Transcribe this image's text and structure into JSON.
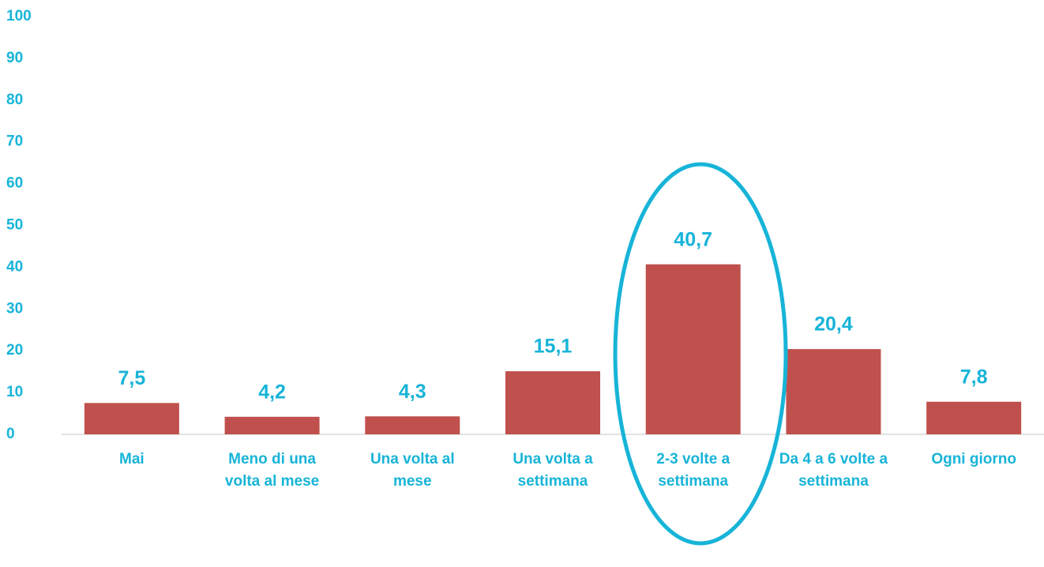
{
  "chart_data": {
    "type": "bar",
    "categories": [
      "Mai",
      "Meno di una volta al mese",
      "Una volta al mese",
      "Una volta a settimana",
      "2-3 volte a settimana",
      "Da 4 a 6 volte a settimana",
      "Ogni giorno"
    ],
    "values": [
      7.5,
      4.2,
      4.3,
      15.1,
      40.7,
      20.4,
      7.8
    ],
    "value_labels": [
      "7,5",
      "4,2",
      "4,3",
      "15,1",
      "40,7",
      "20,4",
      "7,8"
    ],
    "color": "#c0504d",
    "ylim": [
      0,
      100
    ],
    "yticks": [
      0,
      10,
      20,
      30,
      40,
      50,
      60,
      70,
      80,
      90,
      100
    ],
    "grid": false
  }
}
